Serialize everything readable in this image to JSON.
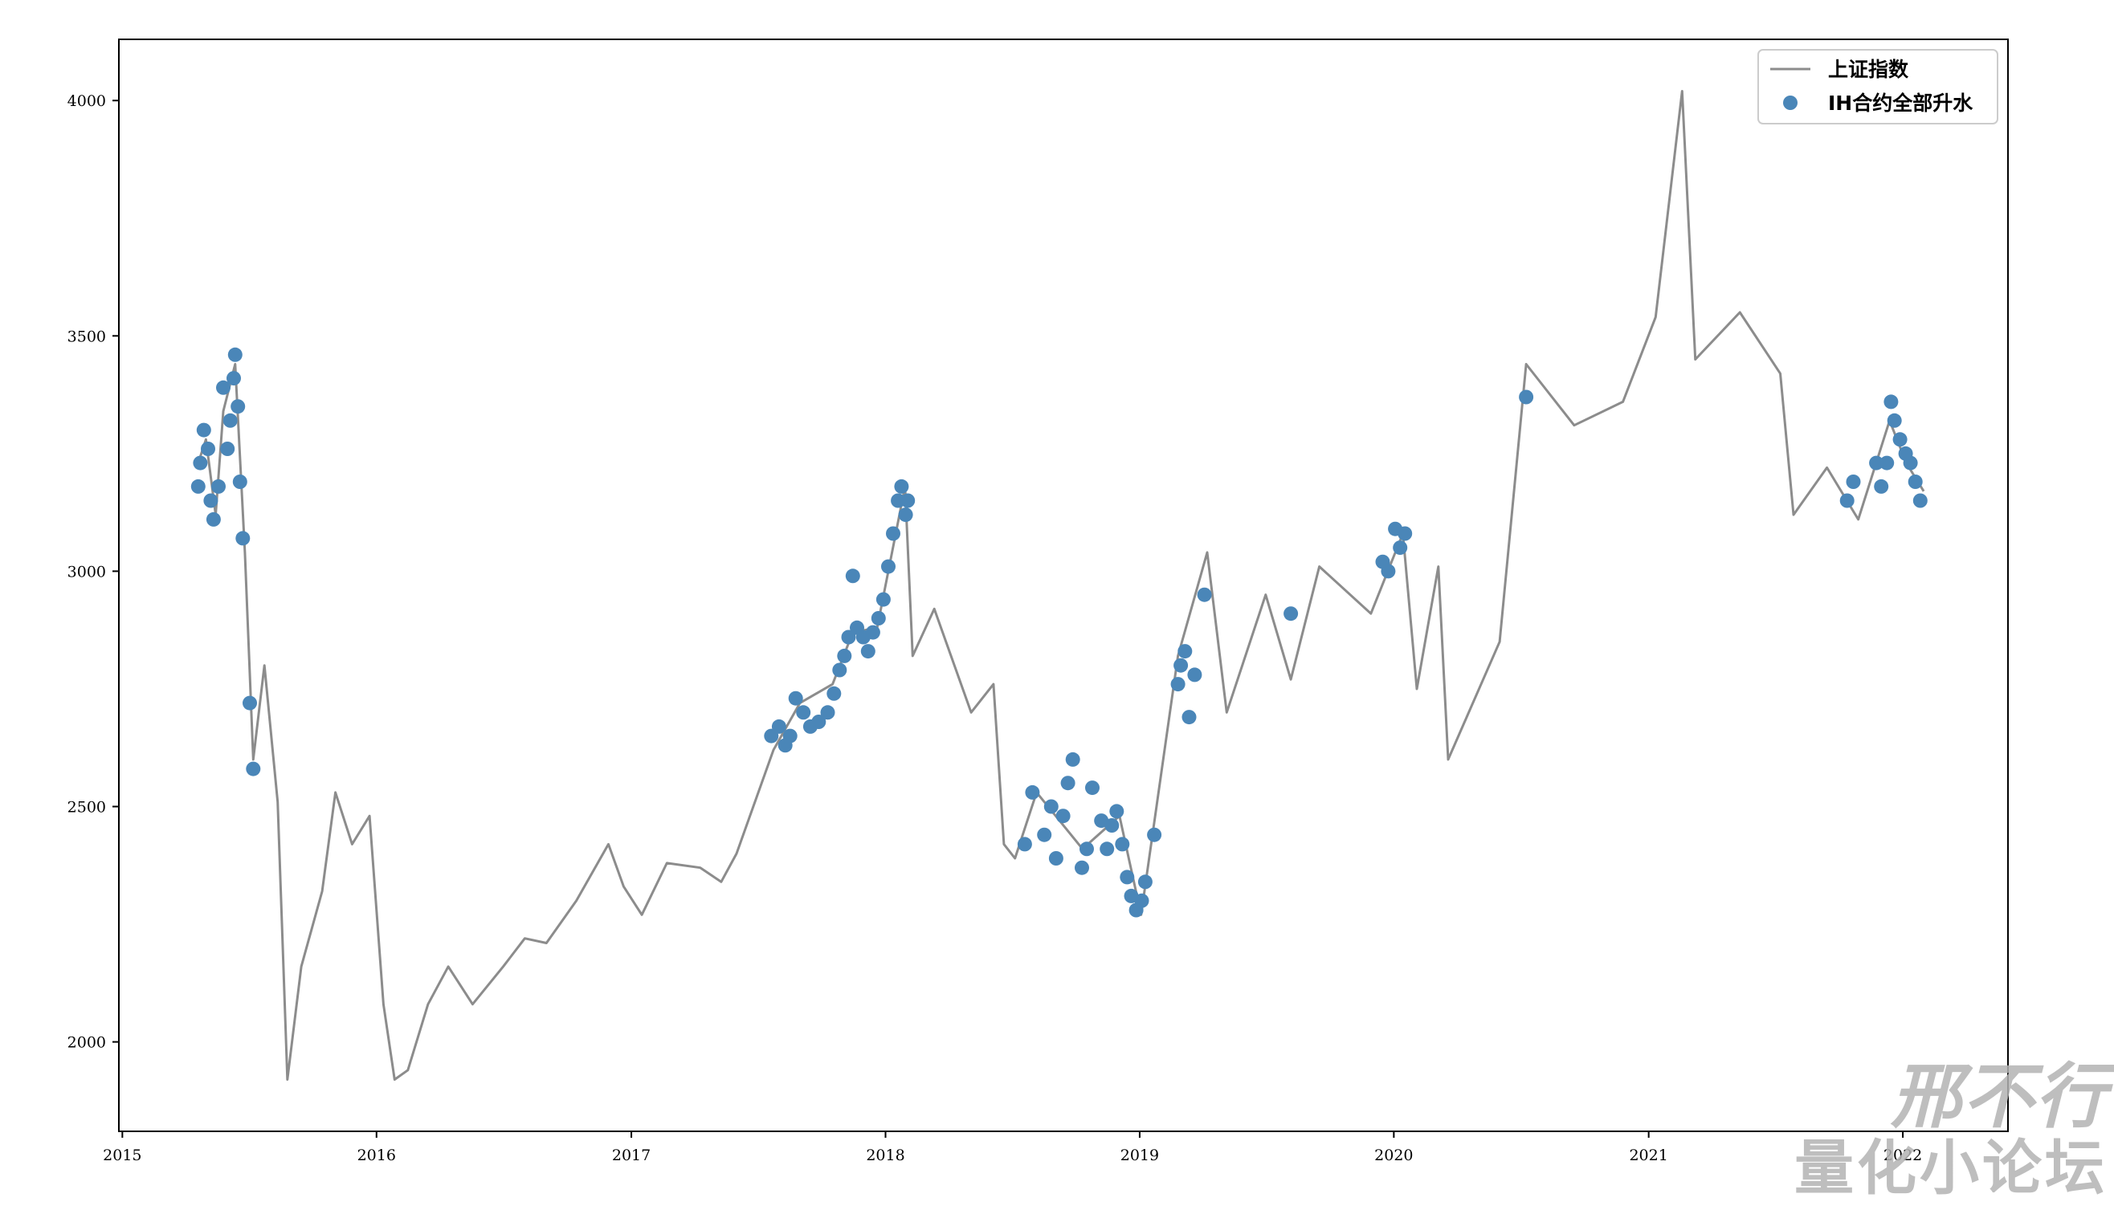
{
  "chart_data": {
    "type": "line",
    "title": "",
    "xlabel": "",
    "ylabel": "",
    "xlim": [
      "2014-12-27",
      "2022-06-01"
    ],
    "ylim": [
      1810,
      4130
    ],
    "x_ticks": [
      "2015",
      "2016",
      "2017",
      "2018",
      "2019",
      "2020",
      "2021",
      "2022"
    ],
    "y_ticks": [
      2000,
      2500,
      3000,
      3500,
      4000
    ],
    "grid": false,
    "legend": "top-right",
    "colors": {
      "line": "#8c8c8c",
      "scatter": "#4a86b8",
      "axes": "#000000"
    },
    "series": [
      {
        "name": "上证指数",
        "type": "line",
        "points": [
          [
            "2015-04-20",
            3230
          ],
          [
            "2015-05-01",
            3280
          ],
          [
            "2015-05-15",
            3120
          ],
          [
            "2015-05-26",
            3340
          ],
          [
            "2015-06-12",
            3440
          ],
          [
            "2015-06-26",
            3040
          ],
          [
            "2015-07-08",
            2600
          ],
          [
            "2015-07-24",
            2800
          ],
          [
            "2015-08-12",
            2510
          ],
          [
            "2015-08-26",
            1920
          ],
          [
            "2015-09-15",
            2160
          ],
          [
            "2015-10-15",
            2320
          ],
          [
            "2015-11-03",
            2530
          ],
          [
            "2015-11-27",
            2420
          ],
          [
            "2015-12-22",
            2480
          ],
          [
            "2016-01-11",
            2080
          ],
          [
            "2016-01-27",
            1920
          ],
          [
            "2016-02-15",
            1940
          ],
          [
            "2016-03-15",
            2080
          ],
          [
            "2016-04-13",
            2160
          ],
          [
            "2016-05-18",
            2080
          ],
          [
            "2016-07-01",
            2160
          ],
          [
            "2016-08-01",
            2220
          ],
          [
            "2016-09-01",
            2210
          ],
          [
            "2016-10-14",
            2300
          ],
          [
            "2016-11-29",
            2420
          ],
          [
            "2016-12-21",
            2330
          ],
          [
            "2017-01-16",
            2270
          ],
          [
            "2017-02-21",
            2380
          ],
          [
            "2017-04-10",
            2370
          ],
          [
            "2017-05-10",
            2340
          ],
          [
            "2017-06-01",
            2400
          ],
          [
            "2017-07-24",
            2620
          ],
          [
            "2017-08-31",
            2720
          ],
          [
            "2017-10-17",
            2760
          ],
          [
            "2017-11-15",
            2870
          ],
          [
            "2017-12-20",
            2880
          ],
          [
            "2018-01-29",
            3180
          ],
          [
            "2018-02-09",
            2820
          ],
          [
            "2018-03-12",
            2920
          ],
          [
            "2018-05-04",
            2700
          ],
          [
            "2018-06-05",
            2760
          ],
          [
            "2018-06-20",
            2420
          ],
          [
            "2018-07-06",
            2390
          ],
          [
            "2018-08-06",
            2530
          ],
          [
            "2018-10-11",
            2410
          ],
          [
            "2018-12-03",
            2480
          ],
          [
            "2019-01-03",
            2270
          ],
          [
            "2019-02-25",
            2820
          ],
          [
            "2019-04-08",
            3040
          ],
          [
            "2019-05-06",
            2700
          ],
          [
            "2019-07-01",
            2950
          ],
          [
            "2019-08-06",
            2770
          ],
          [
            "2019-09-16",
            3010
          ],
          [
            "2019-11-29",
            2910
          ],
          [
            "2020-01-14",
            3080
          ],
          [
            "2020-02-03",
            2750
          ],
          [
            "2020-03-05",
            3010
          ],
          [
            "2020-03-19",
            2600
          ],
          [
            "2020-06-01",
            2850
          ],
          [
            "2020-07-09",
            3440
          ],
          [
            "2020-09-16",
            3310
          ],
          [
            "2020-11-25",
            3360
          ],
          [
            "2021-01-11",
            3540
          ],
          [
            "2021-02-18",
            4020
          ],
          [
            "2021-03-09",
            3450
          ],
          [
            "2021-05-12",
            3550
          ],
          [
            "2021-07-09",
            3420
          ],
          [
            "2021-07-28",
            3120
          ],
          [
            "2021-09-14",
            3220
          ],
          [
            "2021-10-29",
            3110
          ],
          [
            "2021-12-13",
            3320
          ],
          [
            "2022-01-06",
            3230
          ],
          [
            "2022-01-31",
            3170
          ]
        ]
      },
      {
        "name": "IH合约全部升水",
        "type": "scatter",
        "points": [
          [
            "2015-04-20",
            3180
          ],
          [
            "2015-04-23",
            3230
          ],
          [
            "2015-04-28",
            3300
          ],
          [
            "2015-05-04",
            3260
          ],
          [
            "2015-05-08",
            3150
          ],
          [
            "2015-05-12",
            3110
          ],
          [
            "2015-05-19",
            3180
          ],
          [
            "2015-05-26",
            3390
          ],
          [
            "2015-06-01",
            3260
          ],
          [
            "2015-06-05",
            3320
          ],
          [
            "2015-06-10",
            3410
          ],
          [
            "2015-06-12",
            3460
          ],
          [
            "2015-06-16",
            3350
          ],
          [
            "2015-06-19",
            3190
          ],
          [
            "2015-06-23",
            3070
          ],
          [
            "2015-07-03",
            2720
          ],
          [
            "2015-07-08",
            2580
          ],
          [
            "2017-07-21",
            2650
          ],
          [
            "2017-08-01",
            2670
          ],
          [
            "2017-08-10",
            2630
          ],
          [
            "2017-08-17",
            2650
          ],
          [
            "2017-08-25",
            2730
          ],
          [
            "2017-09-05",
            2700
          ],
          [
            "2017-09-15",
            2670
          ],
          [
            "2017-09-27",
            2680
          ],
          [
            "2017-10-10",
            2700
          ],
          [
            "2017-10-19",
            2740
          ],
          [
            "2017-10-27",
            2790
          ],
          [
            "2017-11-03",
            2820
          ],
          [
            "2017-11-09",
            2860
          ],
          [
            "2017-11-15",
            2990
          ],
          [
            "2017-11-21",
            2880
          ],
          [
            "2017-11-30",
            2860
          ],
          [
            "2017-12-07",
            2830
          ],
          [
            "2017-12-14",
            2870
          ],
          [
            "2017-12-22",
            2900
          ],
          [
            "2017-12-29",
            2940
          ],
          [
            "2018-01-05",
            3010
          ],
          [
            "2018-01-12",
            3080
          ],
          [
            "2018-01-19",
            3150
          ],
          [
            "2018-01-24",
            3180
          ],
          [
            "2018-01-30",
            3120
          ],
          [
            "2018-02-02",
            3150
          ],
          [
            "2018-07-20",
            2420
          ],
          [
            "2018-07-31",
            2530
          ],
          [
            "2018-08-17",
            2440
          ],
          [
            "2018-08-27",
            2500
          ],
          [
            "2018-09-03",
            2390
          ],
          [
            "2018-09-13",
            2480
          ],
          [
            "2018-09-20",
            2550
          ],
          [
            "2018-09-27",
            2600
          ],
          [
            "2018-10-10",
            2370
          ],
          [
            "2018-10-17",
            2410
          ],
          [
            "2018-10-25",
            2540
          ],
          [
            "2018-11-07",
            2470
          ],
          [
            "2018-11-15",
            2410
          ],
          [
            "2018-11-22",
            2460
          ],
          [
            "2018-11-29",
            2490
          ],
          [
            "2018-12-07",
            2420
          ],
          [
            "2018-12-14",
            2350
          ],
          [
            "2018-12-20",
            2310
          ],
          [
            "2018-12-27",
            2280
          ],
          [
            "2019-01-04",
            2300
          ],
          [
            "2019-01-09",
            2340
          ],
          [
            "2019-01-22",
            2440
          ],
          [
            "2019-02-25",
            2760
          ],
          [
            "2019-03-01",
            2800
          ],
          [
            "2019-03-07",
            2830
          ],
          [
            "2019-03-13",
            2690
          ],
          [
            "2019-03-21",
            2780
          ],
          [
            "2019-04-04",
            2950
          ],
          [
            "2019-08-06",
            2910
          ],
          [
            "2019-12-16",
            3020
          ],
          [
            "2019-12-24",
            3000
          ],
          [
            "2020-01-03",
            3090
          ],
          [
            "2020-01-10",
            3050
          ],
          [
            "2020-01-17",
            3080
          ],
          [
            "2020-07-09",
            3370
          ],
          [
            "2021-10-13",
            3150
          ],
          [
            "2021-10-22",
            3190
          ],
          [
            "2021-11-24",
            3230
          ],
          [
            "2021-12-01",
            3180
          ],
          [
            "2021-12-09",
            3230
          ],
          [
            "2021-12-15",
            3360
          ],
          [
            "2021-12-20",
            3320
          ],
          [
            "2021-12-28",
            3280
          ],
          [
            "2022-01-05",
            3250
          ],
          [
            "2022-01-12",
            3230
          ],
          [
            "2022-01-19",
            3190
          ],
          [
            "2022-01-26",
            3150
          ]
        ]
      }
    ]
  },
  "watermark": {
    "line1": "邢不行",
    "line2": "量化小论坛"
  }
}
